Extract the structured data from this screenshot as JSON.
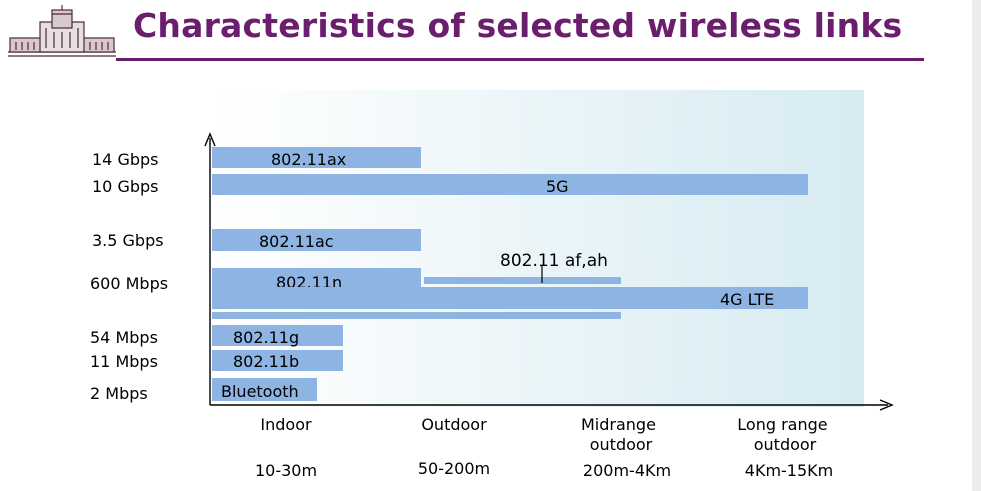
{
  "slide": {
    "title": "Characteristics of selected wireless links"
  },
  "chart_data": {
    "type": "bar",
    "y_ticks": [
      "14 Gbps",
      "10 Gbps",
      "3.5 Gbps",
      "600 Mbps",
      "54 Mbps",
      "11 Mbps",
      "2 Mbps"
    ],
    "x_categories": [
      {
        "name": "Indoor",
        "range": "10-30m"
      },
      {
        "name": "Outdoor",
        "range": "50-200m"
      },
      {
        "name": "Midrange outdoor",
        "range": "200m-4Km"
      },
      {
        "name": "Long range outdoor",
        "range": "4Km-15Km"
      }
    ],
    "bars": [
      {
        "label": "802.11ax",
        "rate": "14 Gbps",
        "coverage": "Indoor"
      },
      {
        "label": "5G",
        "rate": "10 Gbps",
        "coverage": "Long range outdoor"
      },
      {
        "label": "802.11ac",
        "rate": "3.5 Gbps",
        "coverage": "Indoor"
      },
      {
        "label": "802.11n",
        "rate": "600 Mbps",
        "coverage": "Indoor"
      },
      {
        "label": "802.11 af,ah",
        "rate": "600 Mbps",
        "coverage": "Midrange outdoor"
      },
      {
        "label": "4G LTE",
        "rate": "600 Mbps",
        "coverage": "Long range outdoor"
      },
      {
        "label": "802.11g",
        "rate": "54 Mbps",
        "coverage": "Indoor"
      },
      {
        "label": "802.11b",
        "rate": "11 Mbps",
        "coverage": "Indoor"
      },
      {
        "label": "Bluetooth",
        "rate": "2 Mbps",
        "coverage": "Indoor"
      }
    ],
    "colors": {
      "bar": "#8db4e2",
      "title": "#6b1e6d",
      "background_tint": "#d6ebf2"
    }
  }
}
